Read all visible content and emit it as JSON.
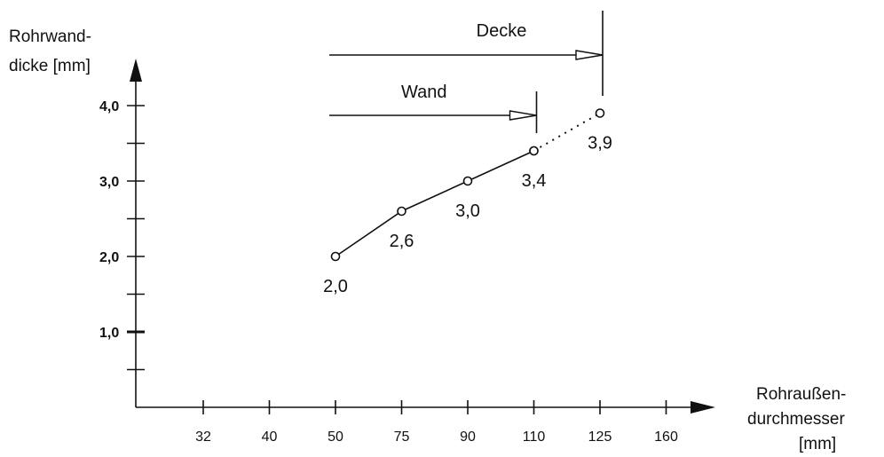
{
  "chart_data": {
    "type": "line",
    "title": "",
    "ylabel_lines": [
      "Rohrwand-",
      "dicke [mm]"
    ],
    "xlabel_lines": [
      "Rohraußen-",
      "durchmesser",
      "[mm]"
    ],
    "x_categories": [
      "32",
      "40",
      "50",
      "75",
      "90",
      "110",
      "125",
      "160"
    ],
    "y_ticks": [
      1.0,
      2.0,
      3.0,
      4.0
    ],
    "y_tick_labels": [
      "1,0",
      "2,0",
      "3,0",
      "4,0"
    ],
    "y_minor_ticks": [
      0.5,
      1.5,
      2.5,
      3.5
    ],
    "ylim": [
      0,
      4.0
    ],
    "grid": false,
    "series": [
      {
        "style": "solid",
        "x": [
          "50",
          "75",
          "90",
          "110"
        ],
        "y": [
          2.0,
          2.6,
          3.0,
          3.4
        ],
        "labels": [
          "2,0",
          "2,6",
          "3,0",
          "3,4"
        ]
      },
      {
        "style": "dotted",
        "x": [
          "110",
          "125"
        ],
        "y": [
          3.4,
          3.9
        ],
        "labels": [
          "",
          "3,9"
        ]
      }
    ],
    "annotations": [
      {
        "text": "Decke",
        "from_x": "50",
        "to_x": "125"
      },
      {
        "text": "Wand",
        "from_x": "50",
        "to_x": "110"
      }
    ]
  }
}
